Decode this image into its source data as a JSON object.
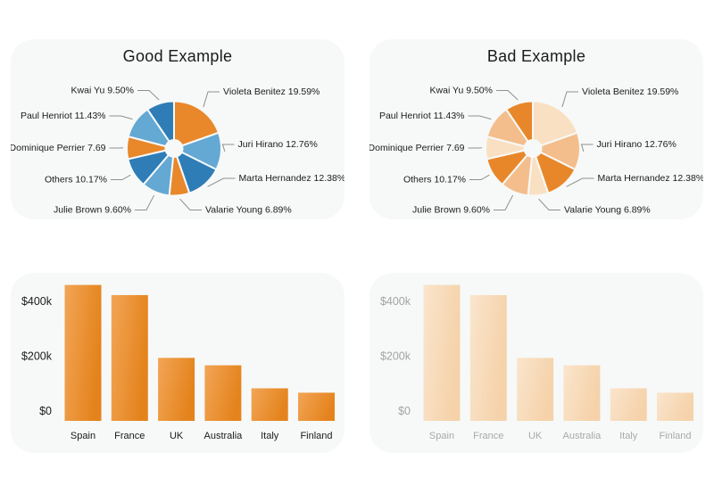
{
  "page": {
    "background": "#ffffff",
    "card_background": "#f7f9f8"
  },
  "chart_data": [
    {
      "id": "good-pie",
      "type": "pie",
      "title": "Good Example",
      "donut": true,
      "label_color": "#1a1a1a",
      "leader_color": "#8f8f8f",
      "slices": [
        {
          "label": "Violeta Benitez 19.59%",
          "value": 19.59,
          "color": "#e8882b"
        },
        {
          "label": "Juri Hirano 12.76%",
          "value": 12.76,
          "color": "#64a8d4"
        },
        {
          "label": "Marta Hernandez 12.38%",
          "value": 12.38,
          "color": "#2e7db7"
        },
        {
          "label": "Valarie Young 6.89%",
          "value": 6.89,
          "color": "#e8882b"
        },
        {
          "label": "Julie Brown 9.60%",
          "value": 9.6,
          "color": "#64a8d4"
        },
        {
          "label": "Others 10.17%",
          "value": 10.17,
          "color": "#2e7db7"
        },
        {
          "label": "Dominique Perrier 7.69",
          "value": 7.69,
          "color": "#e8882b"
        },
        {
          "label": "Paul Henriot 11.43%",
          "value": 11.43,
          "color": "#64a8d4"
        },
        {
          "label": "Kwai Yu 9.50%",
          "value": 9.5,
          "color": "#2e7db7"
        }
      ]
    },
    {
      "id": "bad-pie",
      "type": "pie",
      "title": "Bad Example",
      "donut": true,
      "label_color": "#1a1a1a",
      "leader_color": "#8f8f8f",
      "slices": [
        {
          "label": "Violeta Benitez 19.59%",
          "value": 19.59,
          "color": "#fae0c2"
        },
        {
          "label": "Juri Hirano 12.76%",
          "value": 12.76,
          "color": "#f3be8c"
        },
        {
          "label": "Marta Hernandez 12.38%",
          "value": 12.38,
          "color": "#e8872a"
        },
        {
          "label": "Valarie Young 6.89%",
          "value": 6.89,
          "color": "#fae0c2"
        },
        {
          "label": "Julie Brown 9.60%",
          "value": 9.6,
          "color": "#f3be8c"
        },
        {
          "label": "Others 10.17%",
          "value": 10.17,
          "color": "#e8872a"
        },
        {
          "label": "Dominique Perrier 7.69",
          "value": 7.69,
          "color": "#fae0c2"
        },
        {
          "label": "Paul Henriot 11.43%",
          "value": 11.43,
          "color": "#f3be8c"
        },
        {
          "label": "Kwai Yu 9.50%",
          "value": 9.5,
          "color": "#e8872a"
        }
      ]
    },
    {
      "id": "good-bar",
      "type": "bar",
      "categories": [
        "Spain",
        "France",
        "UK",
        "Australia",
        "Italy",
        "Finland"
      ],
      "values": [
        460000,
        423000,
        194000,
        167000,
        83000,
        67000
      ],
      "yticks": [
        {
          "label": "$400k",
          "value": 400000
        },
        {
          "label": "$200k",
          "value": 200000
        },
        {
          "label": "$0",
          "value": 0
        }
      ],
      "ylim": [
        0,
        500000
      ],
      "grid": false,
      "bar_gradient": [
        "#f2a556",
        "#e4831c"
      ],
      "tick_color": "#1a1a1a",
      "category_color": "#1a1a1a"
    },
    {
      "id": "bad-bar",
      "type": "bar",
      "categories": [
        "Spain",
        "France",
        "UK",
        "Australia",
        "Italy",
        "Finland"
      ],
      "values": [
        460000,
        423000,
        194000,
        167000,
        83000,
        67000
      ],
      "yticks": [
        {
          "label": "$400k",
          "value": 400000
        },
        {
          "label": "$200k",
          "value": 200000
        },
        {
          "label": "$0",
          "value": 0
        }
      ],
      "ylim": [
        0,
        500000
      ],
      "grid": false,
      "bar_gradient": [
        "#fae5cd",
        "#f5d2a9"
      ],
      "tick_color": "#a3a3a3",
      "category_color": "#a8a8a8"
    }
  ]
}
